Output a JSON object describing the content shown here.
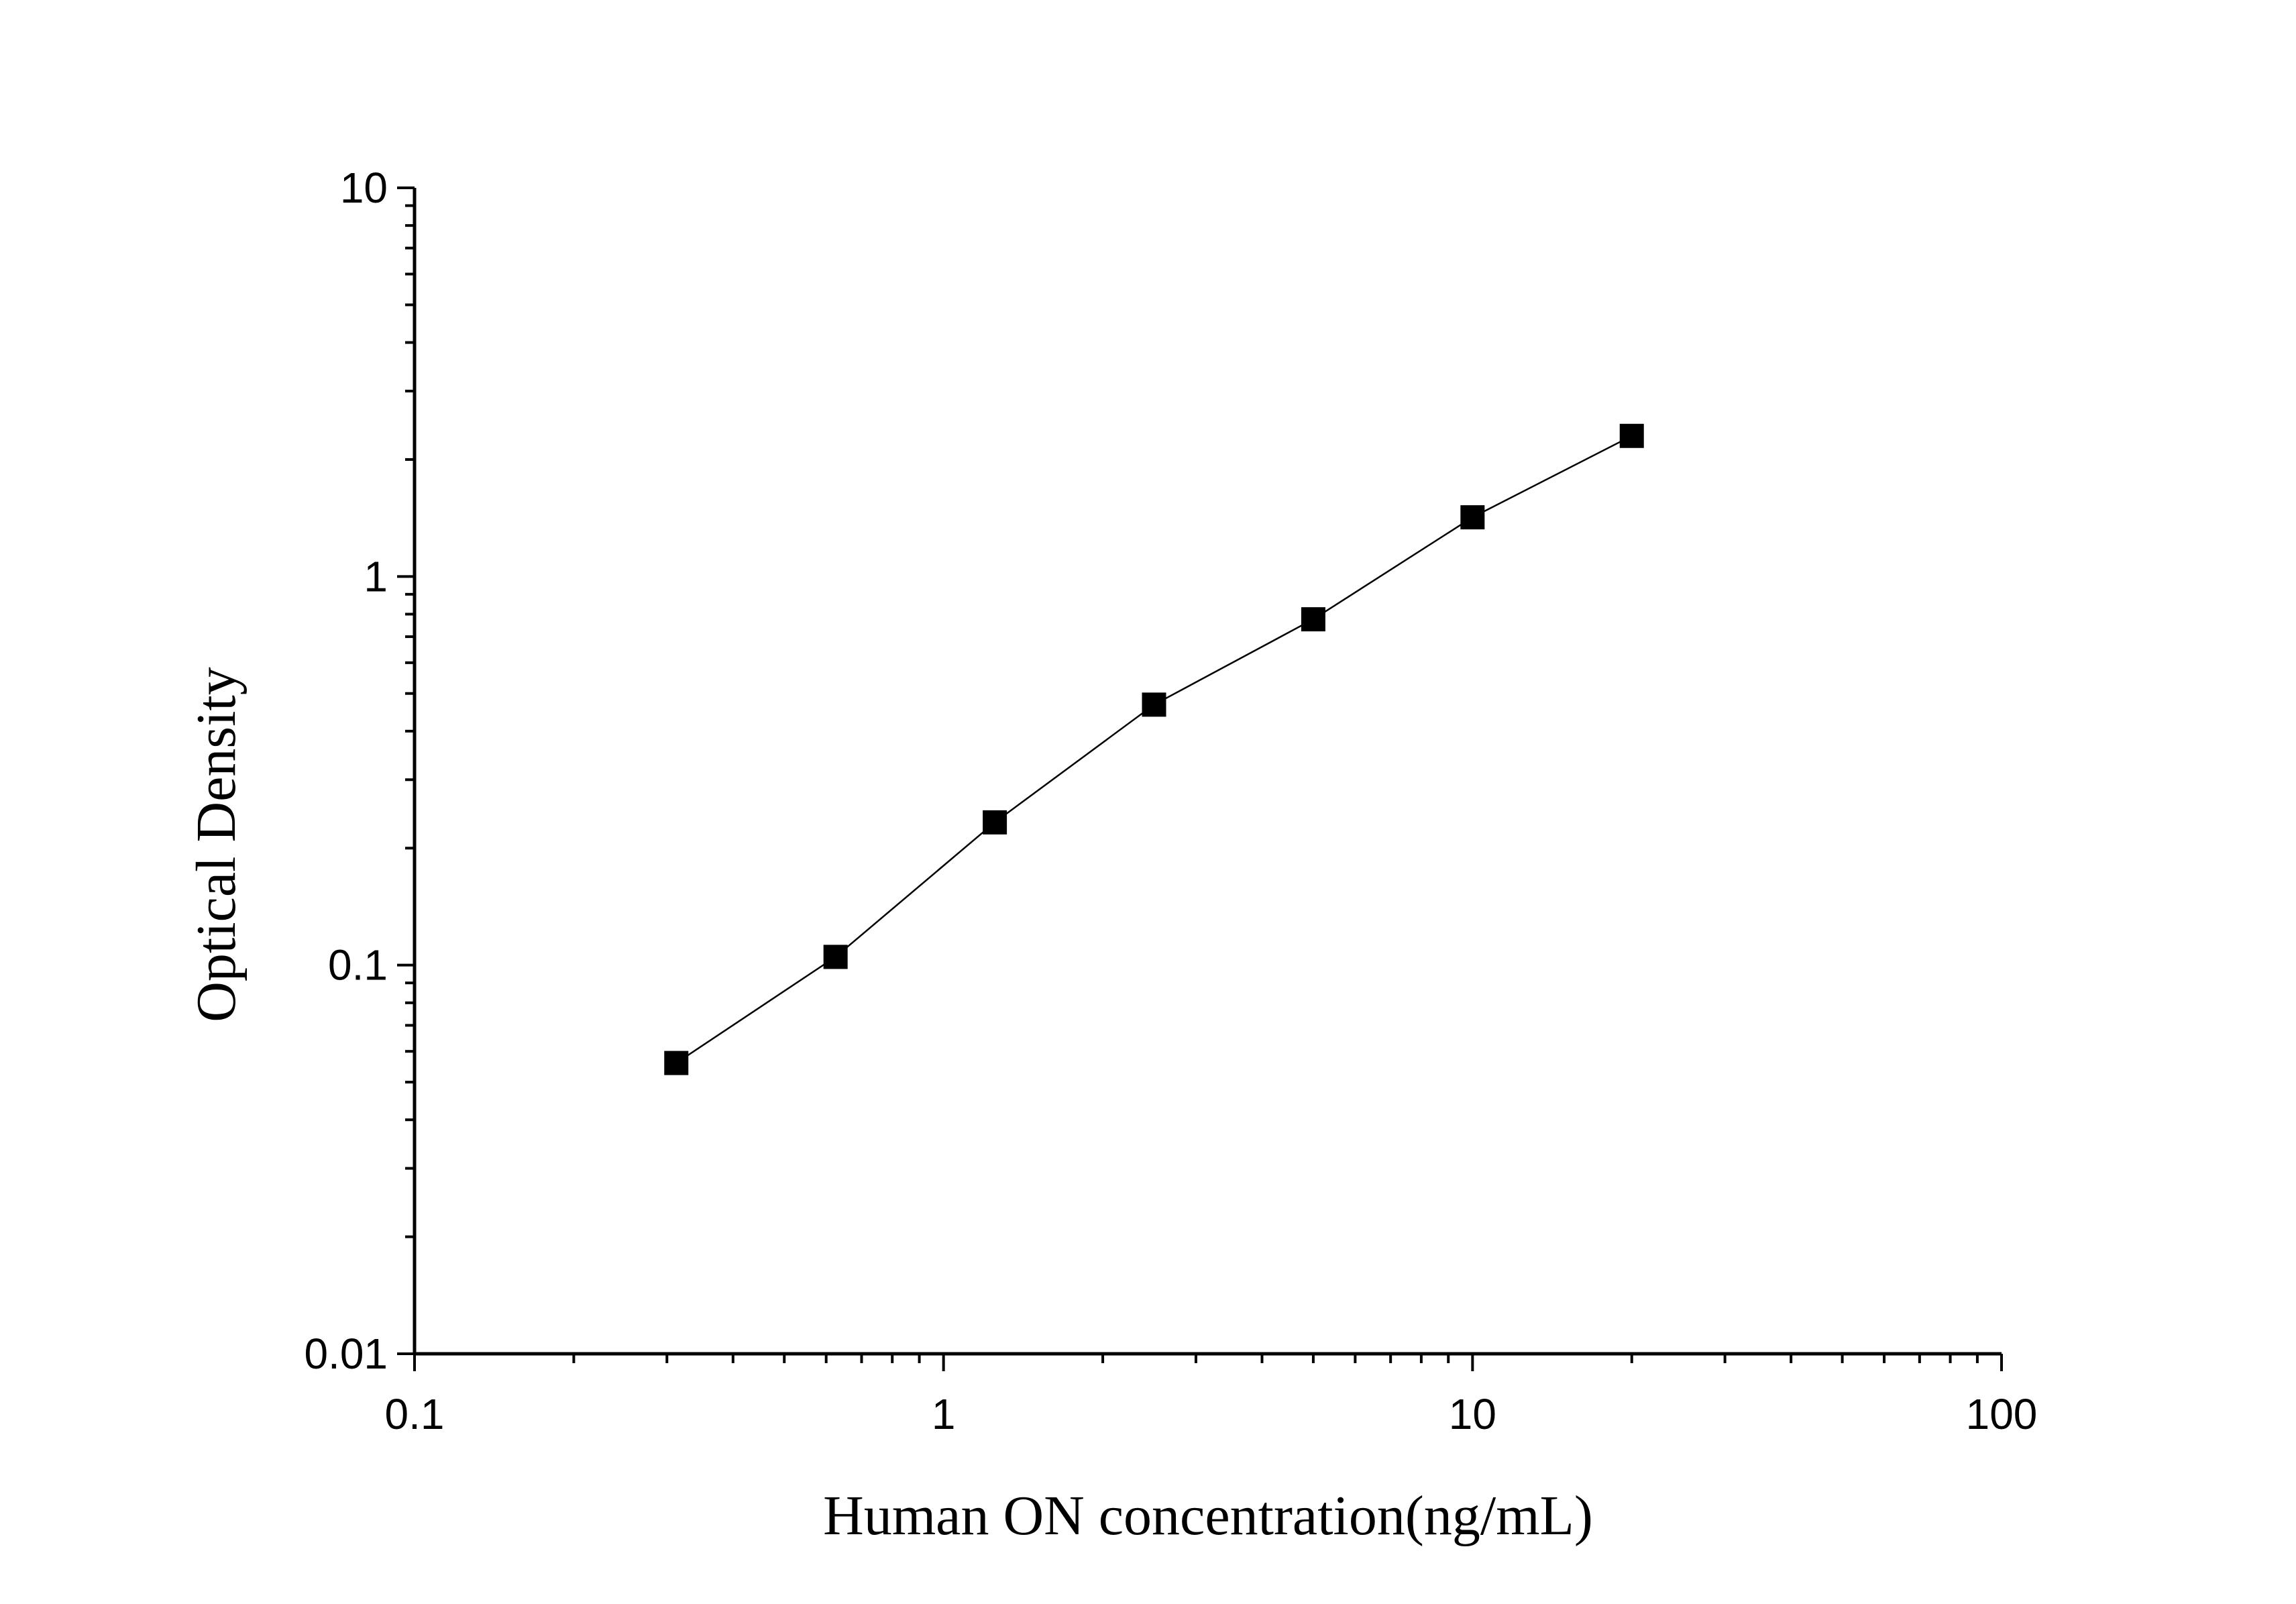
{
  "chart_data": {
    "type": "scatter",
    "title": "",
    "xlabel": "Human ON concentration(ng/mL)",
    "ylabel": "Optical Density",
    "x_scale": "log",
    "y_scale": "log",
    "xlim": [
      0.1,
      100
    ],
    "ylim": [
      0.01,
      10
    ],
    "x_ticks": [
      {
        "value": 0.1,
        "label": "0.1"
      },
      {
        "value": 1,
        "label": "1"
      },
      {
        "value": 10,
        "label": "10"
      },
      {
        "value": 100,
        "label": "100"
      }
    ],
    "y_ticks": [
      {
        "value": 0.01,
        "label": "0.01"
      },
      {
        "value": 0.1,
        "label": "0.1"
      },
      {
        "value": 1,
        "label": "1"
      },
      {
        "value": 10,
        "label": "10"
      }
    ],
    "grid": false,
    "legend": "none",
    "series": [
      {
        "marker": "square",
        "line": "fitted-curve",
        "color": "#000000",
        "points": [
          {
            "x": 0.3125,
            "y": 0.056
          },
          {
            "x": 0.625,
            "y": 0.105
          },
          {
            "x": 1.25,
            "y": 0.233
          },
          {
            "x": 2.5,
            "y": 0.468
          },
          {
            "x": 5,
            "y": 0.776
          },
          {
            "x": 10,
            "y": 1.42
          },
          {
            "x": 20,
            "y": 2.3
          }
        ]
      }
    ]
  }
}
